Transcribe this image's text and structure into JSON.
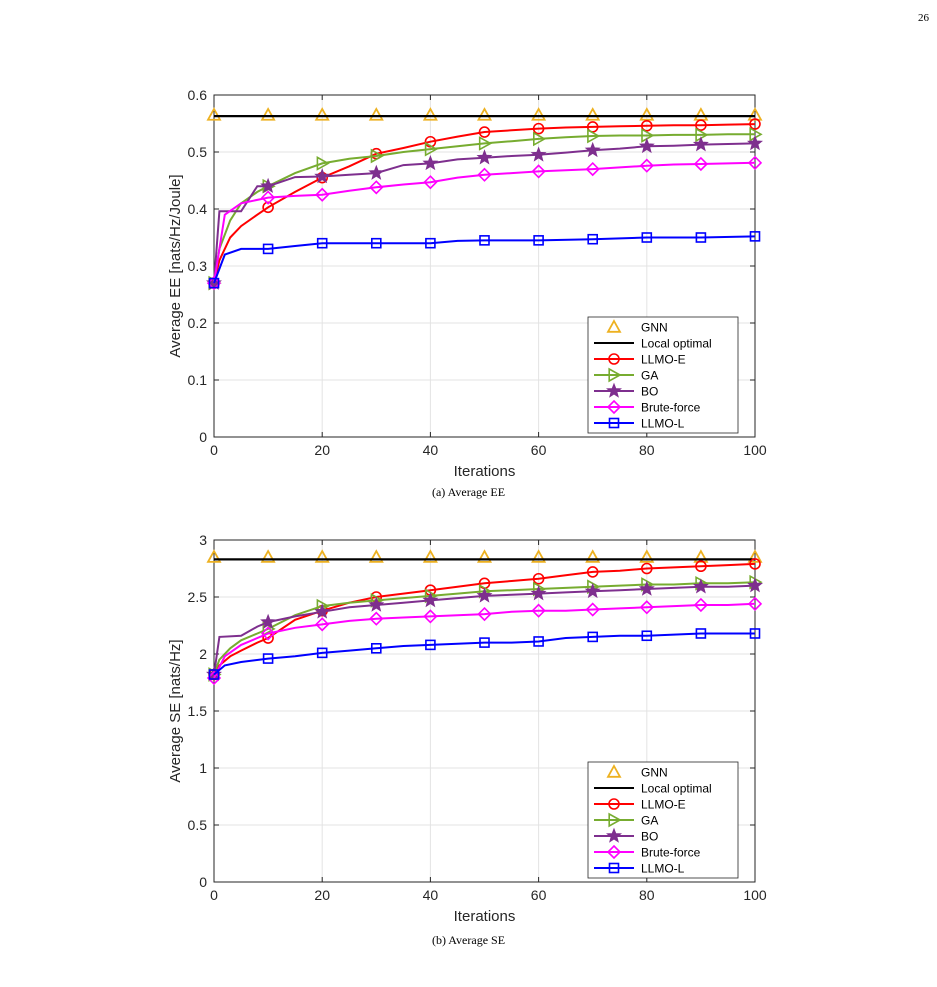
{
  "page_number": "26",
  "captions": {
    "ee": "(a)  Average EE",
    "se": "(b)  Average SE"
  },
  "footer_text": "",
  "chart_data": [
    {
      "type": "line",
      "xlabel": "Iterations",
      "ylabel": "Average EE [nats/Hz/Joule]",
      "xlim": [
        0,
        100
      ],
      "ylim": [
        0,
        0.6
      ],
      "xticks": [
        0,
        20,
        40,
        60,
        80,
        100
      ],
      "yticks": [
        0,
        0.1,
        0.2,
        0.3,
        0.4,
        0.5,
        0.6
      ],
      "grid": true,
      "legend_position": "bottom-right",
      "series": [
        {
          "name": "GNN",
          "color": "#EDB120",
          "marker": "triangle",
          "line": false,
          "x": [
            0,
            10,
            20,
            30,
            40,
            50,
            60,
            70,
            80,
            90,
            100
          ],
          "y": [
            0.565,
            0.565,
            0.565,
            0.565,
            0.565,
            0.565,
            0.565,
            0.565,
            0.565,
            0.565,
            0.565
          ]
        },
        {
          "name": "Local optimal",
          "color": "#000000",
          "marker": "none",
          "line": true,
          "x": [
            0,
            100
          ],
          "y": [
            0.563,
            0.563
          ]
        },
        {
          "name": "LLMO-E",
          "color": "#FF0000",
          "marker": "circle",
          "line": true,
          "x": [
            0,
            1,
            3,
            5,
            8,
            10,
            15,
            20,
            25,
            30,
            35,
            40,
            45,
            50,
            55,
            60,
            65,
            70,
            75,
            80,
            85,
            90,
            95,
            100
          ],
          "y": [
            0.27,
            0.31,
            0.35,
            0.37,
            0.39,
            0.403,
            0.43,
            0.455,
            0.475,
            0.497,
            0.507,
            0.518,
            0.527,
            0.535,
            0.538,
            0.541,
            0.543,
            0.544,
            0.545,
            0.546,
            0.547,
            0.547,
            0.548,
            0.549
          ]
        },
        {
          "name": "GA",
          "color": "#77AC30",
          "marker": "triangle-right",
          "line": true,
          "x": [
            0,
            1,
            3,
            5,
            8,
            10,
            15,
            20,
            25,
            30,
            35,
            40,
            45,
            50,
            55,
            60,
            65,
            70,
            75,
            80,
            85,
            90,
            95,
            100
          ],
          "y": [
            0.27,
            0.33,
            0.38,
            0.41,
            0.43,
            0.44,
            0.463,
            0.48,
            0.488,
            0.493,
            0.5,
            0.505,
            0.51,
            0.515,
            0.519,
            0.523,
            0.526,
            0.528,
            0.529,
            0.529,
            0.53,
            0.53,
            0.531,
            0.531
          ]
        },
        {
          "name": "BO",
          "color": "#7E2F8E",
          "marker": "star",
          "line": true,
          "x": [
            0,
            1,
            5,
            8,
            10,
            15,
            20,
            25,
            30,
            35,
            40,
            45,
            50,
            55,
            60,
            65,
            70,
            75,
            80,
            85,
            90,
            95,
            100
          ],
          "y": [
            0.27,
            0.396,
            0.396,
            0.44,
            0.44,
            0.456,
            0.457,
            0.46,
            0.463,
            0.477,
            0.48,
            0.487,
            0.49,
            0.493,
            0.495,
            0.499,
            0.503,
            0.506,
            0.51,
            0.511,
            0.513,
            0.514,
            0.515
          ]
        },
        {
          "name": "Brute-force",
          "color": "#FF00FF",
          "marker": "diamond",
          "line": true,
          "x": [
            0,
            2,
            5,
            10,
            15,
            20,
            25,
            30,
            35,
            40,
            45,
            50,
            55,
            60,
            65,
            70,
            75,
            80,
            85,
            90,
            95,
            100
          ],
          "y": [
            0.27,
            0.39,
            0.41,
            0.42,
            0.423,
            0.425,
            0.432,
            0.438,
            0.443,
            0.447,
            0.455,
            0.46,
            0.463,
            0.466,
            0.468,
            0.47,
            0.473,
            0.476,
            0.478,
            0.479,
            0.48,
            0.481
          ]
        },
        {
          "name": "LLMO-L",
          "color": "#0000FF",
          "marker": "square",
          "line": true,
          "x": [
            0,
            2,
            5,
            10,
            15,
            20,
            30,
            40,
            45,
            50,
            60,
            70,
            80,
            90,
            100
          ],
          "y": [
            0.27,
            0.32,
            0.33,
            0.33,
            0.335,
            0.34,
            0.34,
            0.34,
            0.344,
            0.345,
            0.345,
            0.347,
            0.35,
            0.35,
            0.352
          ]
        }
      ]
    },
    {
      "type": "line",
      "xlabel": "Iterations",
      "ylabel": "Average SE [nats/Hz]",
      "xlim": [
        0,
        100
      ],
      "ylim": [
        0,
        3
      ],
      "xticks": [
        0,
        20,
        40,
        60,
        80,
        100
      ],
      "yticks": [
        0,
        0.5,
        1,
        1.5,
        2,
        2.5,
        3
      ],
      "grid": true,
      "legend_position": "bottom-right",
      "series": [
        {
          "name": "GNN",
          "color": "#EDB120",
          "marker": "triangle",
          "line": false,
          "x": [
            0,
            10,
            20,
            30,
            40,
            50,
            60,
            70,
            80,
            90,
            100
          ],
          "y": [
            2.85,
            2.85,
            2.85,
            2.85,
            2.85,
            2.85,
            2.85,
            2.85,
            2.85,
            2.85,
            2.85
          ]
        },
        {
          "name": "Local optimal",
          "color": "#000000",
          "marker": "none",
          "line": true,
          "x": [
            0,
            100
          ],
          "y": [
            2.83,
            2.83
          ]
        },
        {
          "name": "LLMO-E",
          "color": "#FF0000",
          "marker": "circle",
          "line": true,
          "x": [
            0,
            1,
            3,
            5,
            8,
            10,
            15,
            20,
            25,
            30,
            35,
            40,
            45,
            50,
            55,
            60,
            65,
            70,
            75,
            80,
            85,
            90,
            95,
            100
          ],
          "y": [
            1.82,
            1.9,
            1.98,
            2.03,
            2.1,
            2.14,
            2.3,
            2.38,
            2.45,
            2.5,
            2.53,
            2.56,
            2.59,
            2.62,
            2.64,
            2.66,
            2.69,
            2.72,
            2.73,
            2.75,
            2.76,
            2.77,
            2.78,
            2.79
          ]
        },
        {
          "name": "GA",
          "color": "#77AC30",
          "marker": "triangle-right",
          "line": true,
          "x": [
            0,
            1,
            3,
            5,
            8,
            10,
            15,
            20,
            25,
            30,
            35,
            40,
            45,
            50,
            55,
            60,
            65,
            70,
            75,
            80,
            85,
            90,
            95,
            100
          ],
          "y": [
            1.82,
            1.95,
            2.05,
            2.12,
            2.18,
            2.22,
            2.34,
            2.42,
            2.45,
            2.47,
            2.49,
            2.51,
            2.53,
            2.55,
            2.56,
            2.57,
            2.58,
            2.59,
            2.6,
            2.61,
            2.61,
            2.62,
            2.62,
            2.63
          ]
        },
        {
          "name": "BO",
          "color": "#7E2F8E",
          "marker": "star",
          "line": true,
          "x": [
            0,
            1,
            5,
            8,
            10,
            15,
            20,
            25,
            30,
            35,
            40,
            45,
            50,
            55,
            60,
            65,
            70,
            75,
            80,
            85,
            90,
            95,
            100
          ],
          "y": [
            1.82,
            2.15,
            2.16,
            2.24,
            2.28,
            2.33,
            2.37,
            2.41,
            2.43,
            2.45,
            2.47,
            2.49,
            2.51,
            2.52,
            2.53,
            2.54,
            2.55,
            2.56,
            2.57,
            2.58,
            2.59,
            2.59,
            2.6
          ]
        },
        {
          "name": "Brute-force",
          "color": "#FF00FF",
          "marker": "diamond",
          "line": true,
          "x": [
            0,
            2,
            5,
            10,
            15,
            20,
            25,
            30,
            35,
            40,
            45,
            50,
            55,
            60,
            65,
            70,
            75,
            80,
            85,
            90,
            95,
            100
          ],
          "y": [
            1.79,
            1.98,
            2.08,
            2.18,
            2.23,
            2.26,
            2.29,
            2.31,
            2.32,
            2.33,
            2.34,
            2.35,
            2.37,
            2.38,
            2.38,
            2.39,
            2.4,
            2.41,
            2.42,
            2.43,
            2.43,
            2.44
          ]
        },
        {
          "name": "LLMO-L",
          "color": "#0000FF",
          "marker": "square",
          "line": true,
          "x": [
            0,
            2,
            5,
            10,
            15,
            20,
            25,
            30,
            35,
            40,
            45,
            50,
            55,
            60,
            65,
            70,
            75,
            80,
            85,
            90,
            95,
            100
          ],
          "y": [
            1.82,
            1.9,
            1.93,
            1.96,
            1.98,
            2.01,
            2.03,
            2.05,
            2.07,
            2.08,
            2.09,
            2.1,
            2.1,
            2.11,
            2.14,
            2.15,
            2.16,
            2.16,
            2.17,
            2.18,
            2.18,
            2.18
          ]
        }
      ]
    }
  ]
}
